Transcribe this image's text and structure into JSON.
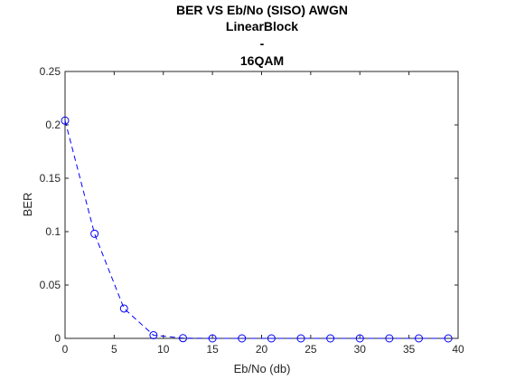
{
  "chart_data": {
    "type": "line",
    "title_lines": [
      "BER VS Eb/No (SISO) AWGN",
      "LinearBlock",
      "-",
      "16QAM"
    ],
    "xlabel": "Eb/No (db)",
    "ylabel": "BER",
    "xlim": [
      0,
      40
    ],
    "ylim": [
      0,
      0.25
    ],
    "xticks": [
      0,
      5,
      10,
      15,
      20,
      25,
      30,
      35,
      40
    ],
    "yticks": [
      0,
      0.05,
      0.1,
      0.15,
      0.2,
      0.25
    ],
    "xtick_labels": [
      "0",
      "5",
      "10",
      "15",
      "20",
      "25",
      "30",
      "35",
      "40"
    ],
    "ytick_labels": [
      "0",
      "0.05",
      "0.1",
      "0.15",
      "0.2",
      "0.25"
    ],
    "grid": false,
    "series": [
      {
        "color": "#0000ff",
        "line_style": "dashed",
        "marker": "circle",
        "x": [
          0,
          3,
          6,
          9,
          12,
          15,
          18,
          21,
          24,
          27,
          30,
          33,
          36,
          39
        ],
        "y": [
          0.204,
          0.098,
          0.028,
          0.003,
          0.0002,
          0,
          0,
          0,
          0,
          0,
          0,
          0,
          0,
          0
        ]
      }
    ]
  }
}
